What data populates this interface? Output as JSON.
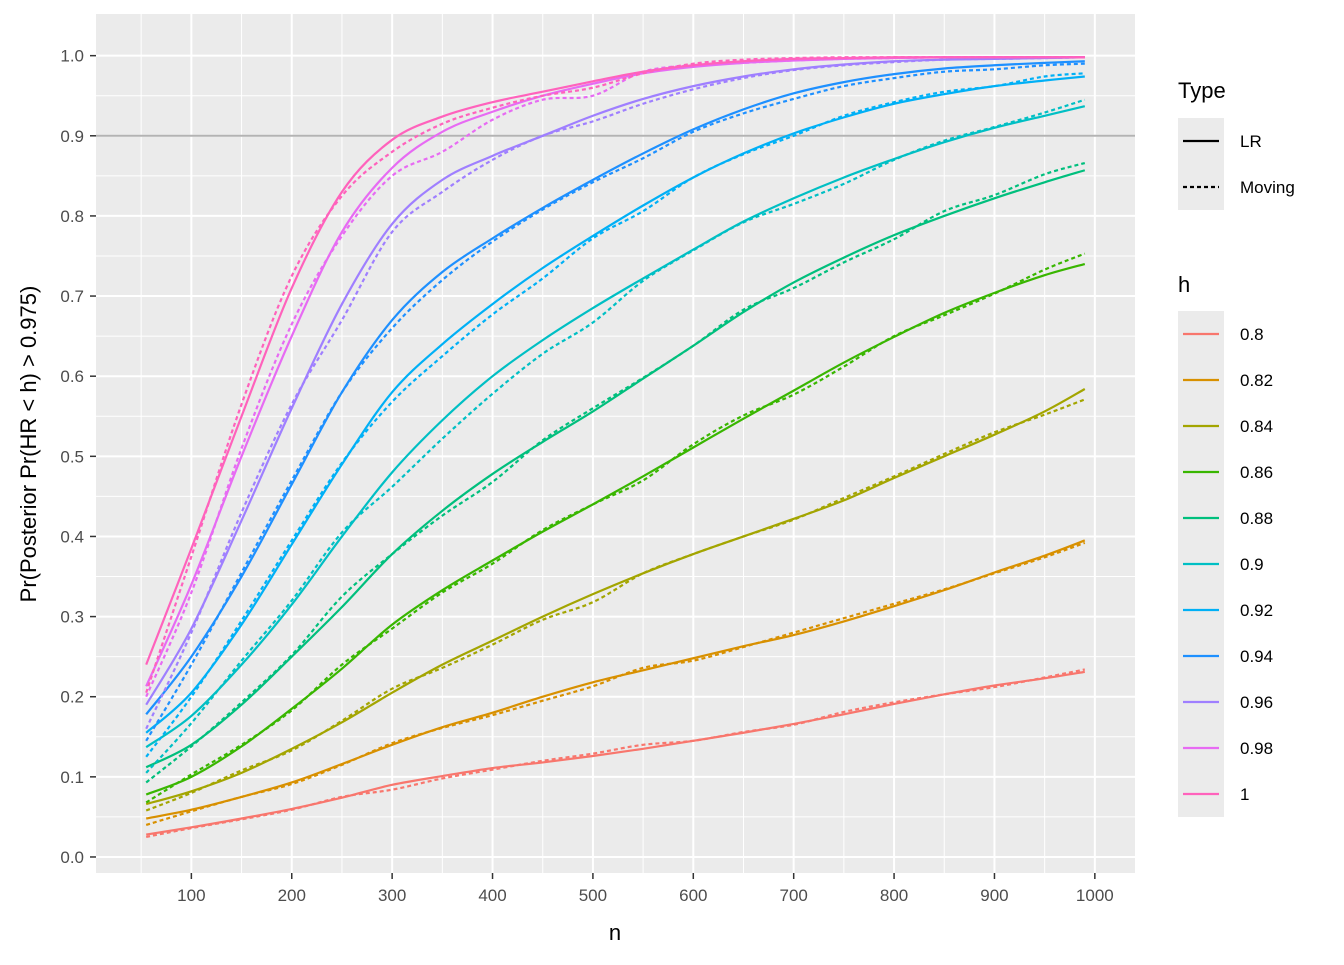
{
  "chart_data": {
    "type": "line",
    "xlabel": "n",
    "ylabel": "Pr(Posterior Pr(HR < h) > 0.975)",
    "xlim": [
      5,
      1040
    ],
    "ylim": [
      -0.02,
      1.052
    ],
    "x_ticks": [
      100,
      200,
      300,
      400,
      500,
      600,
      700,
      800,
      900,
      1000
    ],
    "x_tick_labels": [
      "100",
      "200",
      "300",
      "400",
      "500",
      "600",
      "700",
      "800",
      "900",
      "1000"
    ],
    "y_ticks": [
      0.0,
      0.1,
      0.2,
      0.3,
      0.4,
      0.5,
      0.6,
      0.7,
      0.8,
      0.9,
      1.0
    ],
    "y_tick_labels": [
      "0.0",
      "0.1",
      "0.2",
      "0.3",
      "0.4",
      "0.5",
      "0.6",
      "0.7",
      "0.8",
      "0.9",
      "1.0"
    ],
    "reference_line_y": 0.9,
    "reference_line_color": "#b3b3b3",
    "panel_background": "#ebebeb",
    "grid": true,
    "legend_position": "right",
    "legend_type": {
      "title": "Type",
      "entries": [
        {
          "label": "LR",
          "linetype": "solid"
        },
        {
          "label": "Moving",
          "linetype": "dotted"
        }
      ]
    },
    "legend_h": {
      "title": "h",
      "entries": [
        {
          "label": "0.8",
          "color": "#F8766D"
        },
        {
          "label": "0.82",
          "color": "#D89000"
        },
        {
          "label": "0.84",
          "color": "#A3A500"
        },
        {
          "label": "0.86",
          "color": "#39B600"
        },
        {
          "label": "0.88",
          "color": "#00BF7D"
        },
        {
          "label": "0.9",
          "color": "#00BFC4"
        },
        {
          "label": "0.92",
          "color": "#00B0F6"
        },
        {
          "label": "0.94",
          "color": "#1E90FF"
        },
        {
          "label": "0.96",
          "color": "#9F7FFF"
        },
        {
          "label": "0.98",
          "color": "#E76BF3"
        },
        {
          "label": "1",
          "color": "#FF62BC"
        }
      ]
    },
    "x": [
      55,
      100,
      150,
      200,
      250,
      300,
      350,
      400,
      450,
      500,
      550,
      600,
      650,
      700,
      750,
      800,
      850,
      900,
      950,
      990
    ],
    "series": [
      {
        "h": "0.8",
        "type": "LR",
        "color": "#F8766D",
        "values": [
          0.028,
          0.037,
          0.048,
          0.06,
          0.074,
          0.09,
          0.101,
          0.111,
          0.118,
          0.126,
          0.135,
          0.145,
          0.155,
          0.166,
          0.178,
          0.191,
          0.203,
          0.214,
          0.223,
          0.231
        ]
      },
      {
        "h": "0.8",
        "type": "Moving",
        "color": "#F8766D",
        "values": [
          0.025,
          0.036,
          0.047,
          0.059,
          0.075,
          0.084,
          0.098,
          0.109,
          0.12,
          0.129,
          0.14,
          0.145,
          0.156,
          0.165,
          0.181,
          0.193,
          0.203,
          0.212,
          0.224,
          0.234
        ]
      },
      {
        "h": "0.82",
        "type": "LR",
        "color": "#D89000",
        "values": [
          0.048,
          0.059,
          0.075,
          0.093,
          0.116,
          0.14,
          0.162,
          0.18,
          0.2,
          0.218,
          0.233,
          0.248,
          0.263,
          0.277,
          0.294,
          0.313,
          0.333,
          0.355,
          0.376,
          0.395
        ]
      },
      {
        "h": "0.82",
        "type": "Moving",
        "color": "#D89000",
        "values": [
          0.04,
          0.057,
          0.075,
          0.091,
          0.115,
          0.142,
          0.161,
          0.177,
          0.195,
          0.213,
          0.236,
          0.245,
          0.262,
          0.28,
          0.298,
          0.316,
          0.334,
          0.354,
          0.374,
          0.392
        ]
      },
      {
        "h": "0.84",
        "type": "LR",
        "color": "#A3A500",
        "values": [
          0.066,
          0.082,
          0.105,
          0.135,
          0.168,
          0.205,
          0.24,
          0.27,
          0.3,
          0.328,
          0.354,
          0.378,
          0.4,
          0.422,
          0.445,
          0.473,
          0.5,
          0.527,
          0.556,
          0.584
        ]
      },
      {
        "h": "0.84",
        "type": "Moving",
        "color": "#A3A500",
        "values": [
          0.058,
          0.08,
          0.108,
          0.133,
          0.17,
          0.21,
          0.236,
          0.265,
          0.296,
          0.318,
          0.354,
          0.378,
          0.4,
          0.421,
          0.448,
          0.475,
          0.503,
          0.53,
          0.552,
          0.571
        ]
      },
      {
        "h": "0.86",
        "type": "LR",
        "color": "#39B600",
        "values": [
          0.078,
          0.1,
          0.138,
          0.185,
          0.235,
          0.29,
          0.333,
          0.37,
          0.406,
          0.44,
          0.475,
          0.511,
          0.547,
          0.582,
          0.617,
          0.649,
          0.679,
          0.704,
          0.726,
          0.74
        ]
      },
      {
        "h": "0.86",
        "type": "Moving",
        "color": "#39B600",
        "values": [
          0.068,
          0.103,
          0.14,
          0.183,
          0.24,
          0.285,
          0.33,
          0.366,
          0.408,
          0.44,
          0.47,
          0.515,
          0.551,
          0.577,
          0.612,
          0.65,
          0.676,
          0.703,
          0.733,
          0.753
        ]
      },
      {
        "h": "0.88",
        "type": "LR",
        "color": "#00BF7D",
        "values": [
          0.112,
          0.14,
          0.19,
          0.25,
          0.312,
          0.378,
          0.432,
          0.478,
          0.518,
          0.556,
          0.597,
          0.638,
          0.68,
          0.717,
          0.748,
          0.776,
          0.8,
          0.822,
          0.842,
          0.857
        ]
      },
      {
        "h": "0.88",
        "type": "Moving",
        "color": "#00BF7D",
        "values": [
          0.093,
          0.138,
          0.193,
          0.252,
          0.325,
          0.378,
          0.426,
          0.468,
          0.52,
          0.56,
          0.598,
          0.638,
          0.683,
          0.71,
          0.742,
          0.771,
          0.806,
          0.826,
          0.852,
          0.866
        ]
      },
      {
        "h": "0.9",
        "type": "LR",
        "color": "#00BFC4",
        "values": [
          0.137,
          0.176,
          0.24,
          0.315,
          0.4,
          0.48,
          0.545,
          0.6,
          0.645,
          0.685,
          0.722,
          0.758,
          0.793,
          0.822,
          0.848,
          0.871,
          0.892,
          0.91,
          0.925,
          0.937
        ]
      },
      {
        "h": "0.9",
        "type": "Moving",
        "color": "#00BFC4",
        "values": [
          0.105,
          0.167,
          0.245,
          0.32,
          0.405,
          0.462,
          0.522,
          0.578,
          0.628,
          0.667,
          0.719,
          0.757,
          0.792,
          0.815,
          0.84,
          0.87,
          0.894,
          0.911,
          0.929,
          0.945
        ]
      },
      {
        "h": "0.92",
        "type": "LR",
        "color": "#00B0F6",
        "values": [
          0.155,
          0.205,
          0.29,
          0.39,
          0.49,
          0.58,
          0.64,
          0.69,
          0.735,
          0.775,
          0.813,
          0.848,
          0.878,
          0.903,
          0.923,
          0.94,
          0.952,
          0.962,
          0.969,
          0.974
        ]
      },
      {
        "h": "0.92",
        "type": "Moving",
        "color": "#00B0F6",
        "values": [
          0.125,
          0.2,
          0.295,
          0.395,
          0.492,
          0.568,
          0.625,
          0.677,
          0.722,
          0.772,
          0.806,
          0.848,
          0.877,
          0.9,
          0.925,
          0.942,
          0.955,
          0.962,
          0.974,
          0.978
        ]
      },
      {
        "h": "0.94",
        "type": "LR",
        "color": "#1E90FF",
        "values": [
          0.178,
          0.25,
          0.35,
          0.465,
          0.58,
          0.67,
          0.73,
          0.772,
          0.81,
          0.845,
          0.878,
          0.908,
          0.933,
          0.953,
          0.967,
          0.977,
          0.984,
          0.988,
          0.991,
          0.993
        ]
      },
      {
        "h": "0.94",
        "type": "Moving",
        "color": "#1E90FF",
        "values": [
          0.145,
          0.24,
          0.355,
          0.47,
          0.58,
          0.66,
          0.72,
          0.768,
          0.808,
          0.842,
          0.872,
          0.905,
          0.928,
          0.946,
          0.962,
          0.972,
          0.98,
          0.983,
          0.988,
          0.99
        ]
      },
      {
        "h": "0.96",
        "type": "LR",
        "color": "#9F7FFF",
        "values": [
          0.19,
          0.285,
          0.42,
          0.56,
          0.69,
          0.79,
          0.845,
          0.875,
          0.9,
          0.925,
          0.946,
          0.962,
          0.974,
          0.983,
          0.989,
          0.993,
          0.995,
          0.996,
          0.997,
          0.998
        ]
      },
      {
        "h": "0.96",
        "type": "Moving",
        "color": "#9F7FFF",
        "values": [
          0.16,
          0.28,
          0.43,
          0.565,
          0.67,
          0.78,
          0.83,
          0.87,
          0.9,
          0.918,
          0.94,
          0.958,
          0.972,
          0.982,
          0.988,
          0.992,
          0.995,
          0.996,
          0.997,
          0.998
        ]
      },
      {
        "h": "0.98",
        "type": "LR",
        "color": "#E76BF3",
        "values": [
          0.213,
          0.34,
          0.5,
          0.65,
          0.78,
          0.86,
          0.905,
          0.93,
          0.95,
          0.965,
          0.978,
          0.986,
          0.991,
          0.994,
          0.996,
          0.997,
          0.998,
          0.998,
          0.998,
          0.998
        ]
      },
      {
        "h": "0.98",
        "type": "Moving",
        "color": "#E76BF3",
        "values": [
          0.2,
          0.33,
          0.51,
          0.665,
          0.775,
          0.85,
          0.88,
          0.92,
          0.945,
          0.95,
          0.98,
          0.988,
          0.991,
          0.994,
          0.996,
          0.997,
          0.998,
          0.998,
          0.998,
          0.998
        ]
      },
      {
        "h": "1",
        "type": "LR",
        "color": "#FF62BC",
        "values": [
          0.24,
          0.385,
          0.55,
          0.71,
          0.83,
          0.895,
          0.924,
          0.942,
          0.955,
          0.968,
          0.98,
          0.988,
          0.993,
          0.996,
          0.997,
          0.998,
          0.998,
          0.998,
          0.998,
          0.998
        ]
      },
      {
        "h": "1",
        "type": "Moving",
        "color": "#FF62BC",
        "values": [
          0.205,
          0.375,
          0.565,
          0.725,
          0.825,
          0.88,
          0.915,
          0.935,
          0.95,
          0.96,
          0.978,
          0.99,
          0.995,
          0.997,
          0.998,
          0.998,
          0.998,
          0.998,
          0.998,
          0.998
        ]
      }
    ]
  }
}
